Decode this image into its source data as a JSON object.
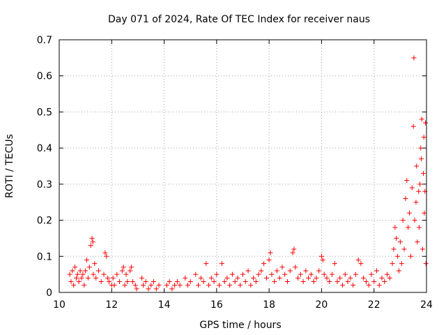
{
  "chart_data": {
    "type": "scatter",
    "title": "Day 071 of 2024, Rate Of TEC Index for receiver naus",
    "xlabel": "GPS time / hours",
    "ylabel": "ROTI / TECUs",
    "xlim": [
      10,
      24
    ],
    "ylim": [
      0,
      0.7
    ],
    "x_ticks": [
      "10",
      "12",
      "14",
      "16",
      "18",
      "20",
      "22",
      "24"
    ],
    "y_ticks": [
      "0",
      "0.1",
      "0.2",
      "0.3",
      "0.4",
      "0.5",
      "0.6",
      "0.7"
    ],
    "grid": true,
    "marker": "+",
    "color": "#ff0000",
    "series": [
      {
        "values": [
          [
            10.4,
            0.05
          ],
          [
            10.45,
            0.03
          ],
          [
            10.5,
            0.06
          ],
          [
            10.55,
            0.02
          ],
          [
            10.6,
            0.07
          ],
          [
            10.65,
            0.04
          ],
          [
            10.7,
            0.05
          ],
          [
            10.75,
            0.03
          ],
          [
            10.8,
            0.06
          ],
          [
            10.85,
            0.04
          ],
          [
            10.9,
            0.05
          ],
          [
            10.95,
            0.02
          ],
          [
            11.0,
            0.06
          ],
          [
            11.05,
            0.09
          ],
          [
            11.1,
            0.04
          ],
          [
            11.15,
            0.07
          ],
          [
            11.2,
            0.13
          ],
          [
            11.25,
            0.15
          ],
          [
            11.28,
            0.14
          ],
          [
            11.3,
            0.05
          ],
          [
            11.35,
            0.08
          ],
          [
            11.4,
            0.04
          ],
          [
            11.5,
            0.06
          ],
          [
            11.6,
            0.03
          ],
          [
            11.7,
            0.05
          ],
          [
            11.75,
            0.11
          ],
          [
            11.8,
            0.1
          ],
          [
            11.85,
            0.04
          ],
          [
            11.9,
            0.03
          ],
          [
            12.0,
            0.02
          ],
          [
            12.05,
            0.04
          ],
          [
            12.1,
            0.02
          ],
          [
            12.2,
            0.05
          ],
          [
            12.3,
            0.03
          ],
          [
            12.4,
            0.06
          ],
          [
            12.45,
            0.07
          ],
          [
            12.5,
            0.02
          ],
          [
            12.55,
            0.05
          ],
          [
            12.6,
            0.03
          ],
          [
            12.7,
            0.06
          ],
          [
            12.75,
            0.07
          ],
          [
            12.8,
            0.03
          ],
          [
            12.9,
            0.02
          ],
          [
            12.95,
            0.01
          ],
          [
            13.15,
            0.04
          ],
          [
            13.2,
            0.02
          ],
          [
            13.3,
            0.03
          ],
          [
            13.4,
            0.01
          ],
          [
            13.5,
            0.02
          ],
          [
            13.6,
            0.03
          ],
          [
            13.7,
            0.01
          ],
          [
            13.8,
            0.02
          ],
          [
            14.1,
            0.02
          ],
          [
            14.2,
            0.03
          ],
          [
            14.3,
            0.01
          ],
          [
            14.4,
            0.02
          ],
          [
            14.5,
            0.03
          ],
          [
            14.6,
            0.02
          ],
          [
            14.8,
            0.04
          ],
          [
            14.9,
            0.02
          ],
          [
            15.0,
            0.03
          ],
          [
            15.2,
            0.05
          ],
          [
            15.3,
            0.02
          ],
          [
            15.4,
            0.04
          ],
          [
            15.5,
            0.03
          ],
          [
            15.6,
            0.08
          ],
          [
            15.7,
            0.02
          ],
          [
            15.8,
            0.04
          ],
          [
            15.9,
            0.03
          ],
          [
            16.0,
            0.05
          ],
          [
            16.1,
            0.02
          ],
          [
            16.2,
            0.08
          ],
          [
            16.3,
            0.03
          ],
          [
            16.4,
            0.04
          ],
          [
            16.5,
            0.02
          ],
          [
            16.6,
            0.05
          ],
          [
            16.7,
            0.03
          ],
          [
            16.8,
            0.04
          ],
          [
            16.9,
            0.02
          ],
          [
            17.0,
            0.05
          ],
          [
            17.1,
            0.03
          ],
          [
            17.2,
            0.06
          ],
          [
            17.3,
            0.02
          ],
          [
            17.4,
            0.04
          ],
          [
            17.5,
            0.03
          ],
          [
            17.6,
            0.05
          ],
          [
            17.7,
            0.06
          ],
          [
            17.8,
            0.08
          ],
          [
            17.9,
            0.04
          ],
          [
            18.0,
            0.09
          ],
          [
            18.05,
            0.11
          ],
          [
            18.1,
            0.05
          ],
          [
            18.2,
            0.03
          ],
          [
            18.3,
            0.06
          ],
          [
            18.4,
            0.04
          ],
          [
            18.5,
            0.07
          ],
          [
            18.6,
            0.05
          ],
          [
            18.7,
            0.03
          ],
          [
            18.8,
            0.06
          ],
          [
            18.9,
            0.11
          ],
          [
            18.95,
            0.12
          ],
          [
            19.0,
            0.07
          ],
          [
            19.1,
            0.04
          ],
          [
            19.2,
            0.05
          ],
          [
            19.3,
            0.03
          ],
          [
            19.4,
            0.06
          ],
          [
            19.5,
            0.04
          ],
          [
            19.6,
            0.05
          ],
          [
            19.7,
            0.03
          ],
          [
            19.8,
            0.04
          ],
          [
            19.9,
            0.06
          ],
          [
            20.0,
            0.1
          ],
          [
            20.05,
            0.09
          ],
          [
            20.1,
            0.05
          ],
          [
            20.2,
            0.04
          ],
          [
            20.3,
            0.03
          ],
          [
            20.4,
            0.05
          ],
          [
            20.5,
            0.08
          ],
          [
            20.6,
            0.03
          ],
          [
            20.7,
            0.04
          ],
          [
            20.8,
            0.02
          ],
          [
            20.9,
            0.05
          ],
          [
            21.0,
            0.03
          ],
          [
            21.1,
            0.04
          ],
          [
            21.2,
            0.02
          ],
          [
            21.3,
            0.05
          ],
          [
            21.4,
            0.09
          ],
          [
            21.5,
            0.08
          ],
          [
            21.6,
            0.04
          ],
          [
            21.7,
            0.03
          ],
          [
            21.8,
            0.02
          ],
          [
            21.9,
            0.05
          ],
          [
            22.0,
            0.03
          ],
          [
            22.1,
            0.06
          ],
          [
            22.2,
            0.02
          ],
          [
            22.3,
            0.04
          ],
          [
            22.4,
            0.03
          ],
          [
            22.5,
            0.05
          ],
          [
            22.6,
            0.04
          ],
          [
            22.7,
            0.08
          ],
          [
            22.75,
            0.12
          ],
          [
            22.8,
            0.18
          ],
          [
            22.85,
            0.15
          ],
          [
            22.9,
            0.1
          ],
          [
            22.95,
            0.06
          ],
          [
            23.0,
            0.14
          ],
          [
            23.05,
            0.08
          ],
          [
            23.1,
            0.2
          ],
          [
            23.15,
            0.12
          ],
          [
            23.2,
            0.26
          ],
          [
            23.25,
            0.31
          ],
          [
            23.3,
            0.18
          ],
          [
            23.35,
            0.22
          ],
          [
            23.4,
            0.1
          ],
          [
            23.45,
            0.29
          ],
          [
            23.5,
            0.46
          ],
          [
            23.52,
            0.65
          ],
          [
            23.55,
            0.2
          ],
          [
            23.6,
            0.25
          ],
          [
            23.62,
            0.35
          ],
          [
            23.65,
            0.14
          ],
          [
            23.7,
            0.28
          ],
          [
            23.72,
            0.18
          ],
          [
            23.75,
            0.3
          ],
          [
            23.78,
            0.4
          ],
          [
            23.8,
            0.37
          ],
          [
            23.82,
            0.48
          ],
          [
            23.85,
            0.12
          ],
          [
            23.88,
            0.33
          ],
          [
            23.9,
            0.43
          ],
          [
            23.92,
            0.22
          ],
          [
            23.94,
            0.28
          ],
          [
            23.96,
            0.47
          ],
          [
            23.98,
            0.08
          ]
        ]
      }
    ]
  }
}
